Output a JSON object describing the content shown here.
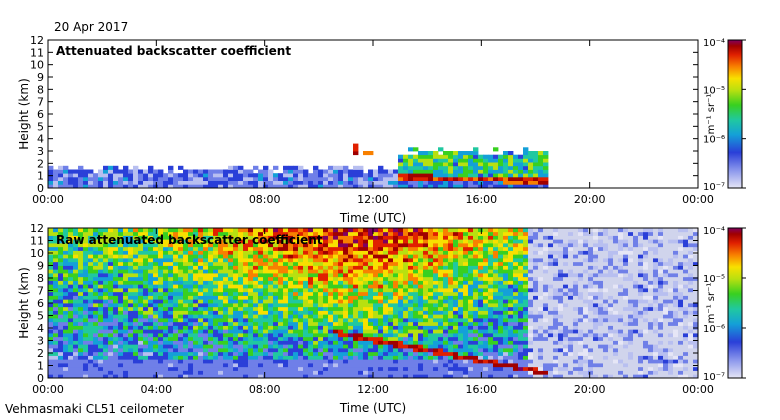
{
  "header": {
    "date": "20 Apr 2017"
  },
  "footer": {
    "instrument": "Vehmasmaki CL51 ceilometer"
  },
  "colors": {
    "background": "#ffffff",
    "nodata": "#d0d4ec",
    "scale": [
      "#e6e6f6",
      "#b8bff0",
      "#6f7fe8",
      "#2a3fd8",
      "#14a0d8",
      "#20c8a0",
      "#38d020",
      "#b8e010",
      "#f8e000",
      "#f88000",
      "#e02000",
      "#a00000",
      "#800060"
    ]
  },
  "chart_data": [
    {
      "type": "heatmap",
      "title": "Attenuated backscatter coefficient",
      "xlabel": "Time (UTC)",
      "ylabel": "Height (km)",
      "xticks": [
        "00:00",
        "04:00",
        "08:00",
        "12:00",
        "16:00",
        "20:00",
        "00:00"
      ],
      "xlim_hours": [
        0,
        24
      ],
      "ylim": [
        0,
        12
      ],
      "yticks": [
        0,
        1,
        2,
        3,
        4,
        5,
        6,
        7,
        8,
        9,
        10,
        11,
        12
      ],
      "colorbar": {
        "label": "m⁻¹ sr⁻¹",
        "scale": "log",
        "ticks": [
          "10⁻⁴",
          "10⁻⁵",
          "10⁻⁶",
          "10⁻⁷"
        ],
        "range": [
          1e-07,
          0.0001
        ]
      },
      "features": [
        {
          "kind": "boundary-layer-aerosol",
          "from_h": 0,
          "to_h": 13.0,
          "top_km": 1.6
        },
        {
          "kind": "cloud-base-layer",
          "from_h": 13.0,
          "to_h": 18.5,
          "base_km": 0.6,
          "top_km": 3.0
        },
        {
          "kind": "isolated-echo",
          "at_h": 11.3,
          "base_km": 2.6,
          "top_km": 3.6
        },
        {
          "kind": "isolated-echo",
          "at_h": 11.8,
          "base_km": 2.7,
          "top_km": 3.1
        }
      ]
    },
    {
      "type": "heatmap",
      "title": "Raw attenuated backscatter coefficient",
      "xlabel": "Time (UTC)",
      "ylabel": "Height (km)",
      "xticks": [
        "00:00",
        "04:00",
        "08:00",
        "12:00",
        "16:00",
        "20:00",
        "00:00"
      ],
      "xlim_hours": [
        0,
        24
      ],
      "ylim": [
        0,
        12
      ],
      "yticks": [
        0,
        1,
        2,
        3,
        4,
        5,
        6,
        7,
        8,
        9,
        10,
        11,
        12
      ],
      "colorbar": {
        "label": "m⁻¹ sr⁻¹",
        "scale": "log",
        "ticks": [
          "10⁻⁴",
          "10⁻⁵",
          "10⁻⁶",
          "10⁻⁷"
        ],
        "range": [
          1e-07,
          0.0001
        ]
      },
      "features": [
        {
          "kind": "noise-gradient",
          "from_h": 0,
          "to_h": 17.8,
          "note_level": "increasing-with-height"
        },
        {
          "kind": "cloud-base-layer",
          "from_h": 10.5,
          "to_h": 18.5,
          "base_km": 0.5,
          "top_km": 3.5
        },
        {
          "kind": "clear-sky-noise",
          "from_h": 17.8,
          "to_h": 24
        }
      ]
    }
  ]
}
